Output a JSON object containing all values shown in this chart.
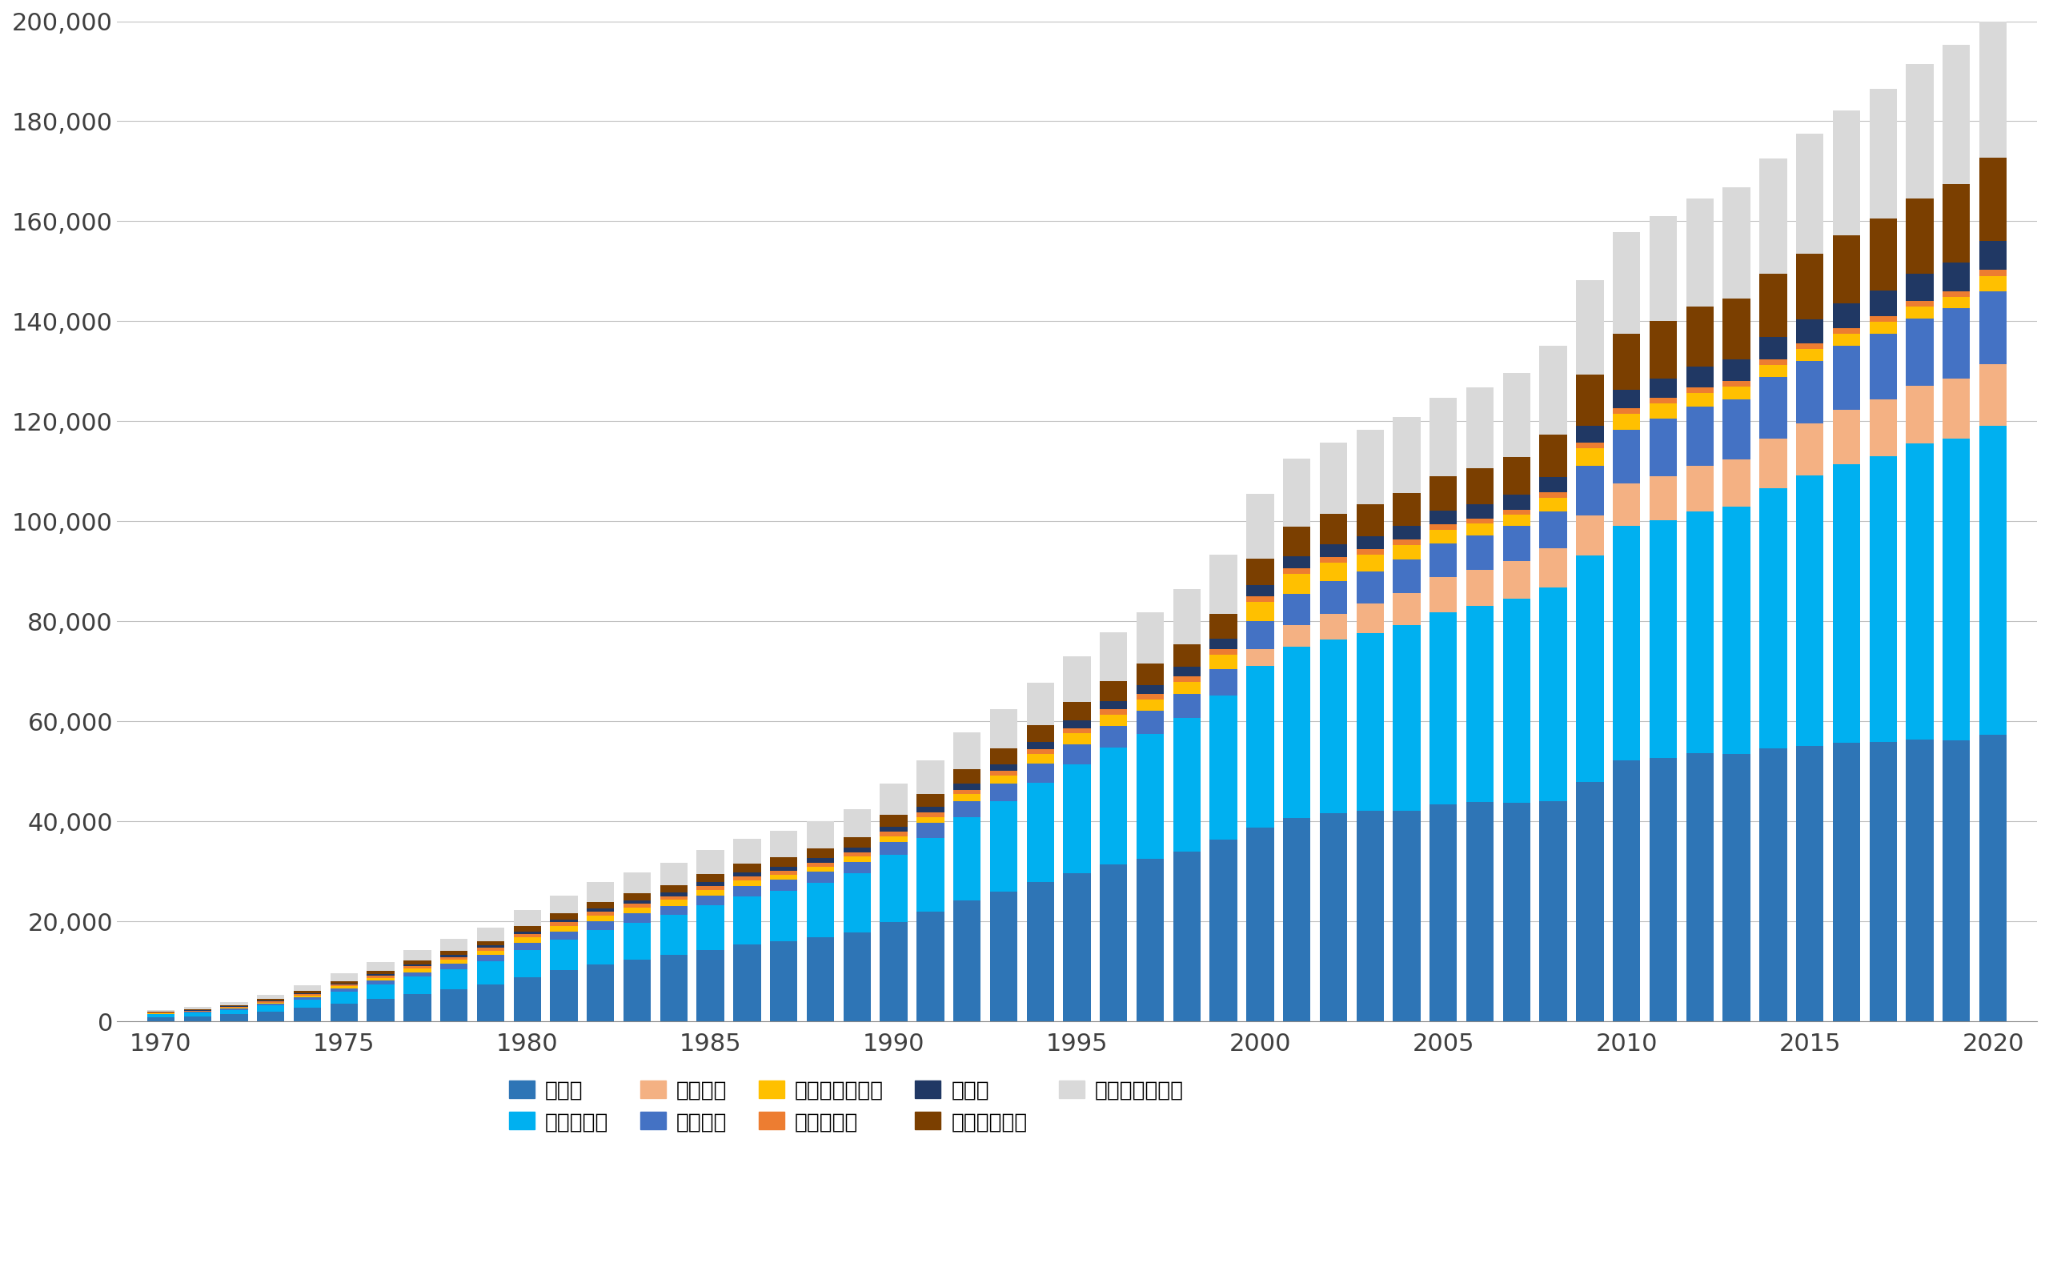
{
  "years": [
    1970,
    1971,
    1972,
    1973,
    1974,
    1975,
    1976,
    1977,
    1978,
    1979,
    1980,
    1981,
    1982,
    1983,
    1984,
    1985,
    1986,
    1987,
    1988,
    1989,
    1990,
    1991,
    1992,
    1993,
    1994,
    1995,
    1996,
    1997,
    1998,
    1999,
    2000,
    2001,
    2002,
    2003,
    2004,
    2005,
    2006,
    2007,
    2008,
    2009,
    2010,
    2011,
    2012,
    2013,
    2014,
    2015,
    2016,
    2017,
    2018,
    2019,
    2020
  ],
  "series": {
    "年金": [
      929,
      1100,
      1451,
      2037,
      2743,
      3657,
      4547,
      5534,
      6488,
      7495,
      8949,
      10286,
      11454,
      12379,
      13288,
      14341,
      15430,
      16023,
      16882,
      17810,
      19966,
      22026,
      24294,
      26016,
      27832,
      29630,
      31368,
      32491,
      34063,
      36414,
      38726,
      40786,
      41673,
      42118,
      42162,
      43480,
      43837,
      43782,
      44136,
      47834,
      52235,
      52700,
      53600,
      53500,
      54700,
      55100,
      55800,
      55900,
      56400,
      56200,
      57300
    ],
    "疾病・出産": [
      535,
      667,
      896,
      1246,
      1725,
      2292,
      2845,
      3429,
      3980,
      4566,
      5375,
      6108,
      6877,
      7433,
      8001,
      8915,
      9673,
      10182,
      10899,
      11800,
      13310,
      14720,
      16527,
      18049,
      19860,
      21731,
      23357,
      25071,
      26710,
      28836,
      32427,
      34127,
      34727,
      35570,
      37109,
      38393,
      39219,
      40748,
      42621,
      45302,
      46925,
      47459,
      48343,
      49434,
      51906,
      54105,
      55625,
      57181,
      59151,
      60369,
      61776
    ],
    "介護対策": [
      0,
      0,
      0,
      0,
      0,
      0,
      0,
      0,
      0,
      0,
      0,
      0,
      0,
      0,
      0,
      0,
      0,
      0,
      0,
      0,
      0,
      0,
      0,
      0,
      0,
      0,
      0,
      0,
      0,
      0,
      3272,
      4369,
      5192,
      5872,
      6483,
      7064,
      7257,
      7617,
      7871,
      8128,
      8378,
      8891,
      9170,
      9428,
      9925,
      10456,
      10953,
      11264,
      11490,
      11966,
      12292
    ],
    "家族手当": [
      115,
      161,
      224,
      319,
      461,
      644,
      785,
      936,
      1079,
      1214,
      1433,
      1622,
      1734,
      1819,
      1888,
      1974,
      2049,
      2107,
      2200,
      2318,
      2642,
      2926,
      3279,
      3541,
      3867,
      4143,
      4428,
      4604,
      4759,
      5195,
      5722,
      6156,
      6417,
      6504,
      6630,
      6724,
      6818,
      6941,
      7398,
      9782,
      10835,
      11480,
      11842,
      12022,
      12297,
      12434,
      12671,
      13152,
      13565,
      14065,
      14652
    ],
    "失業・雇用対策": [
      94,
      126,
      165,
      215,
      297,
      458,
      591,
      736,
      834,
      916,
      1081,
      1131,
      1162,
      1144,
      1134,
      1132,
      1108,
      1080,
      1044,
      1076,
      1170,
      1224,
      1375,
      1571,
      1898,
      2141,
      2239,
      2270,
      2385,
      2943,
      3697,
      4059,
      3807,
      3333,
      2933,
      2686,
      2406,
      2223,
      2741,
      3657,
      3182,
      3017,
      2773,
      2589,
      2498,
      2444,
      2420,
      2380,
      2338,
      2296,
      3050
    ],
    "業務・災害": [
      141,
      170,
      208,
      261,
      321,
      394,
      459,
      510,
      563,
      607,
      671,
      711,
      731,
      738,
      742,
      764,
      773,
      779,
      796,
      813,
      850,
      881,
      912,
      932,
      958,
      993,
      1026,
      1052,
      1078,
      1103,
      1125,
      1130,
      1108,
      1089,
      1074,
      1058,
      1046,
      1036,
      1054,
      1095,
      1098,
      1092,
      1087,
      1082,
      1090,
      1103,
      1110,
      1124,
      1139,
      1152,
      1170
    ],
    "その他": [
      54,
      68,
      91,
      123,
      168,
      220,
      272,
      329,
      384,
      436,
      511,
      578,
      636,
      676,
      712,
      763,
      811,
      854,
      906,
      960,
      1055,
      1148,
      1257,
      1360,
      1469,
      1581,
      1693,
      1812,
      1938,
      2073,
      2231,
      2388,
      2491,
      2573,
      2647,
      2733,
      2826,
      2939,
      3114,
      3390,
      3636,
      3861,
      4085,
      4309,
      4534,
      4754,
      4979,
      5203,
      5428,
      5652,
      5900
    ],
    "管理費その他": [
      129,
      155,
      199,
      271,
      364,
      479,
      589,
      706,
      811,
      913,
      1073,
      1225,
      1367,
      1461,
      1548,
      1668,
      1773,
      1858,
      1960,
      2074,
      2334,
      2568,
      2853,
      3098,
      3381,
      3683,
      3975,
      4238,
      4528,
      4912,
      5369,
      5865,
      6179,
      6438,
      6659,
      6897,
      7164,
      7575,
      8387,
      10128,
      11286,
      11618,
      11978,
      12189,
      12532,
      13091,
      13697,
      14397,
      15051,
      15769,
      16552
    ],
    "他制度への移転": [
      385,
      483,
      640,
      871,
      1150,
      1478,
      1786,
      2102,
      2416,
      2713,
      3153,
      3556,
      3963,
      4212,
      4445,
      4720,
      4976,
      5190,
      5440,
      5700,
      6193,
      6742,
      7334,
      7906,
      8502,
      9088,
      9726,
      10287,
      10990,
      11840,
      12876,
      13728,
      14218,
      14799,
      15218,
      15657,
      16239,
      16793,
      17720,
      18981,
      20222,
      20994,
      21680,
      22268,
      23002,
      23952,
      24855,
      25816,
      26813,
      27814,
      29107
    ]
  },
  "series_order": [
    "年金",
    "疾病・出産",
    "介護対策",
    "家族手当",
    "失業・雇用対策",
    "業務・災害",
    "その他",
    "管理費その他",
    "他制度への移転"
  ],
  "colors": {
    "年金": "#2E75B6",
    "疾病・出産": "#00B0F0",
    "介護対策": "#F4B183",
    "家族手当": "#4472C4",
    "失業・雇用対策": "#FFC000",
    "業務・災害": "#ED7D31",
    "その他": "#203864",
    "管理費その他": "#7B3F00",
    "他制度への移転": "#D9D9D9"
  },
  "legend_labels": [
    "年　金",
    "疾病・出産",
    "介護対策",
    "家族手当",
    "失業・雇用対策",
    "業務　災害",
    "その他",
    "管理費その他",
    "他制度への移転"
  ],
  "legend_keys": [
    "年金",
    "疾病・出産",
    "介護対策",
    "家族手当",
    "失業・雇用対策",
    "業務・災害",
    "その他",
    "管理費その他",
    "他制度への移転"
  ],
  "ylim": [
    0,
    200000
  ],
  "yticks": [
    0,
    20000,
    40000,
    60000,
    80000,
    100000,
    120000,
    140000,
    160000,
    180000,
    200000
  ],
  "xticks": [
    1970,
    1975,
    1980,
    1985,
    1990,
    1995,
    2000,
    2005,
    2010,
    2015,
    2020
  ],
  "background_color": "#FFFFFF",
  "grid_color": "#C0C0C0",
  "bar_width": 0.75,
  "tick_fontsize": 22,
  "legend_fontsize": 19
}
